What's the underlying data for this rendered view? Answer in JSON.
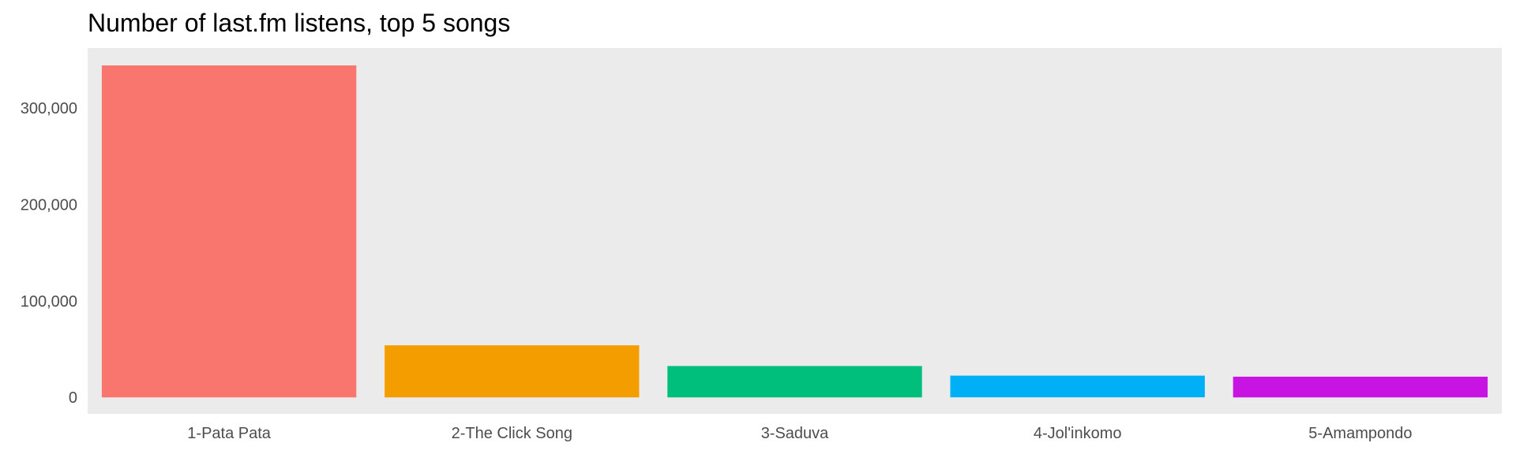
{
  "chart_data": {
    "type": "bar",
    "title": "Number of last.fm listens, top 5 songs",
    "xlabel": "",
    "ylabel": "",
    "categories": [
      "1-Pata Pata",
      "2-The Click Song",
      "3-Saduva",
      "4-Jol'inkomo",
      "5-Amampondo"
    ],
    "values": [
      344000,
      54000,
      32500,
      22500,
      21500
    ],
    "colors": [
      "#F8766D",
      "#F49D00",
      "#00BF7D",
      "#00B0F6",
      "#C814E2"
    ],
    "yticks": [
      0,
      100000,
      200000,
      300000
    ],
    "ytick_labels": [
      "0",
      "100,000",
      "200,000",
      "300,000"
    ],
    "ylim": [
      -17000,
      362000
    ],
    "grid": false,
    "legend": "none",
    "panel_background": "#EBEBEB"
  }
}
